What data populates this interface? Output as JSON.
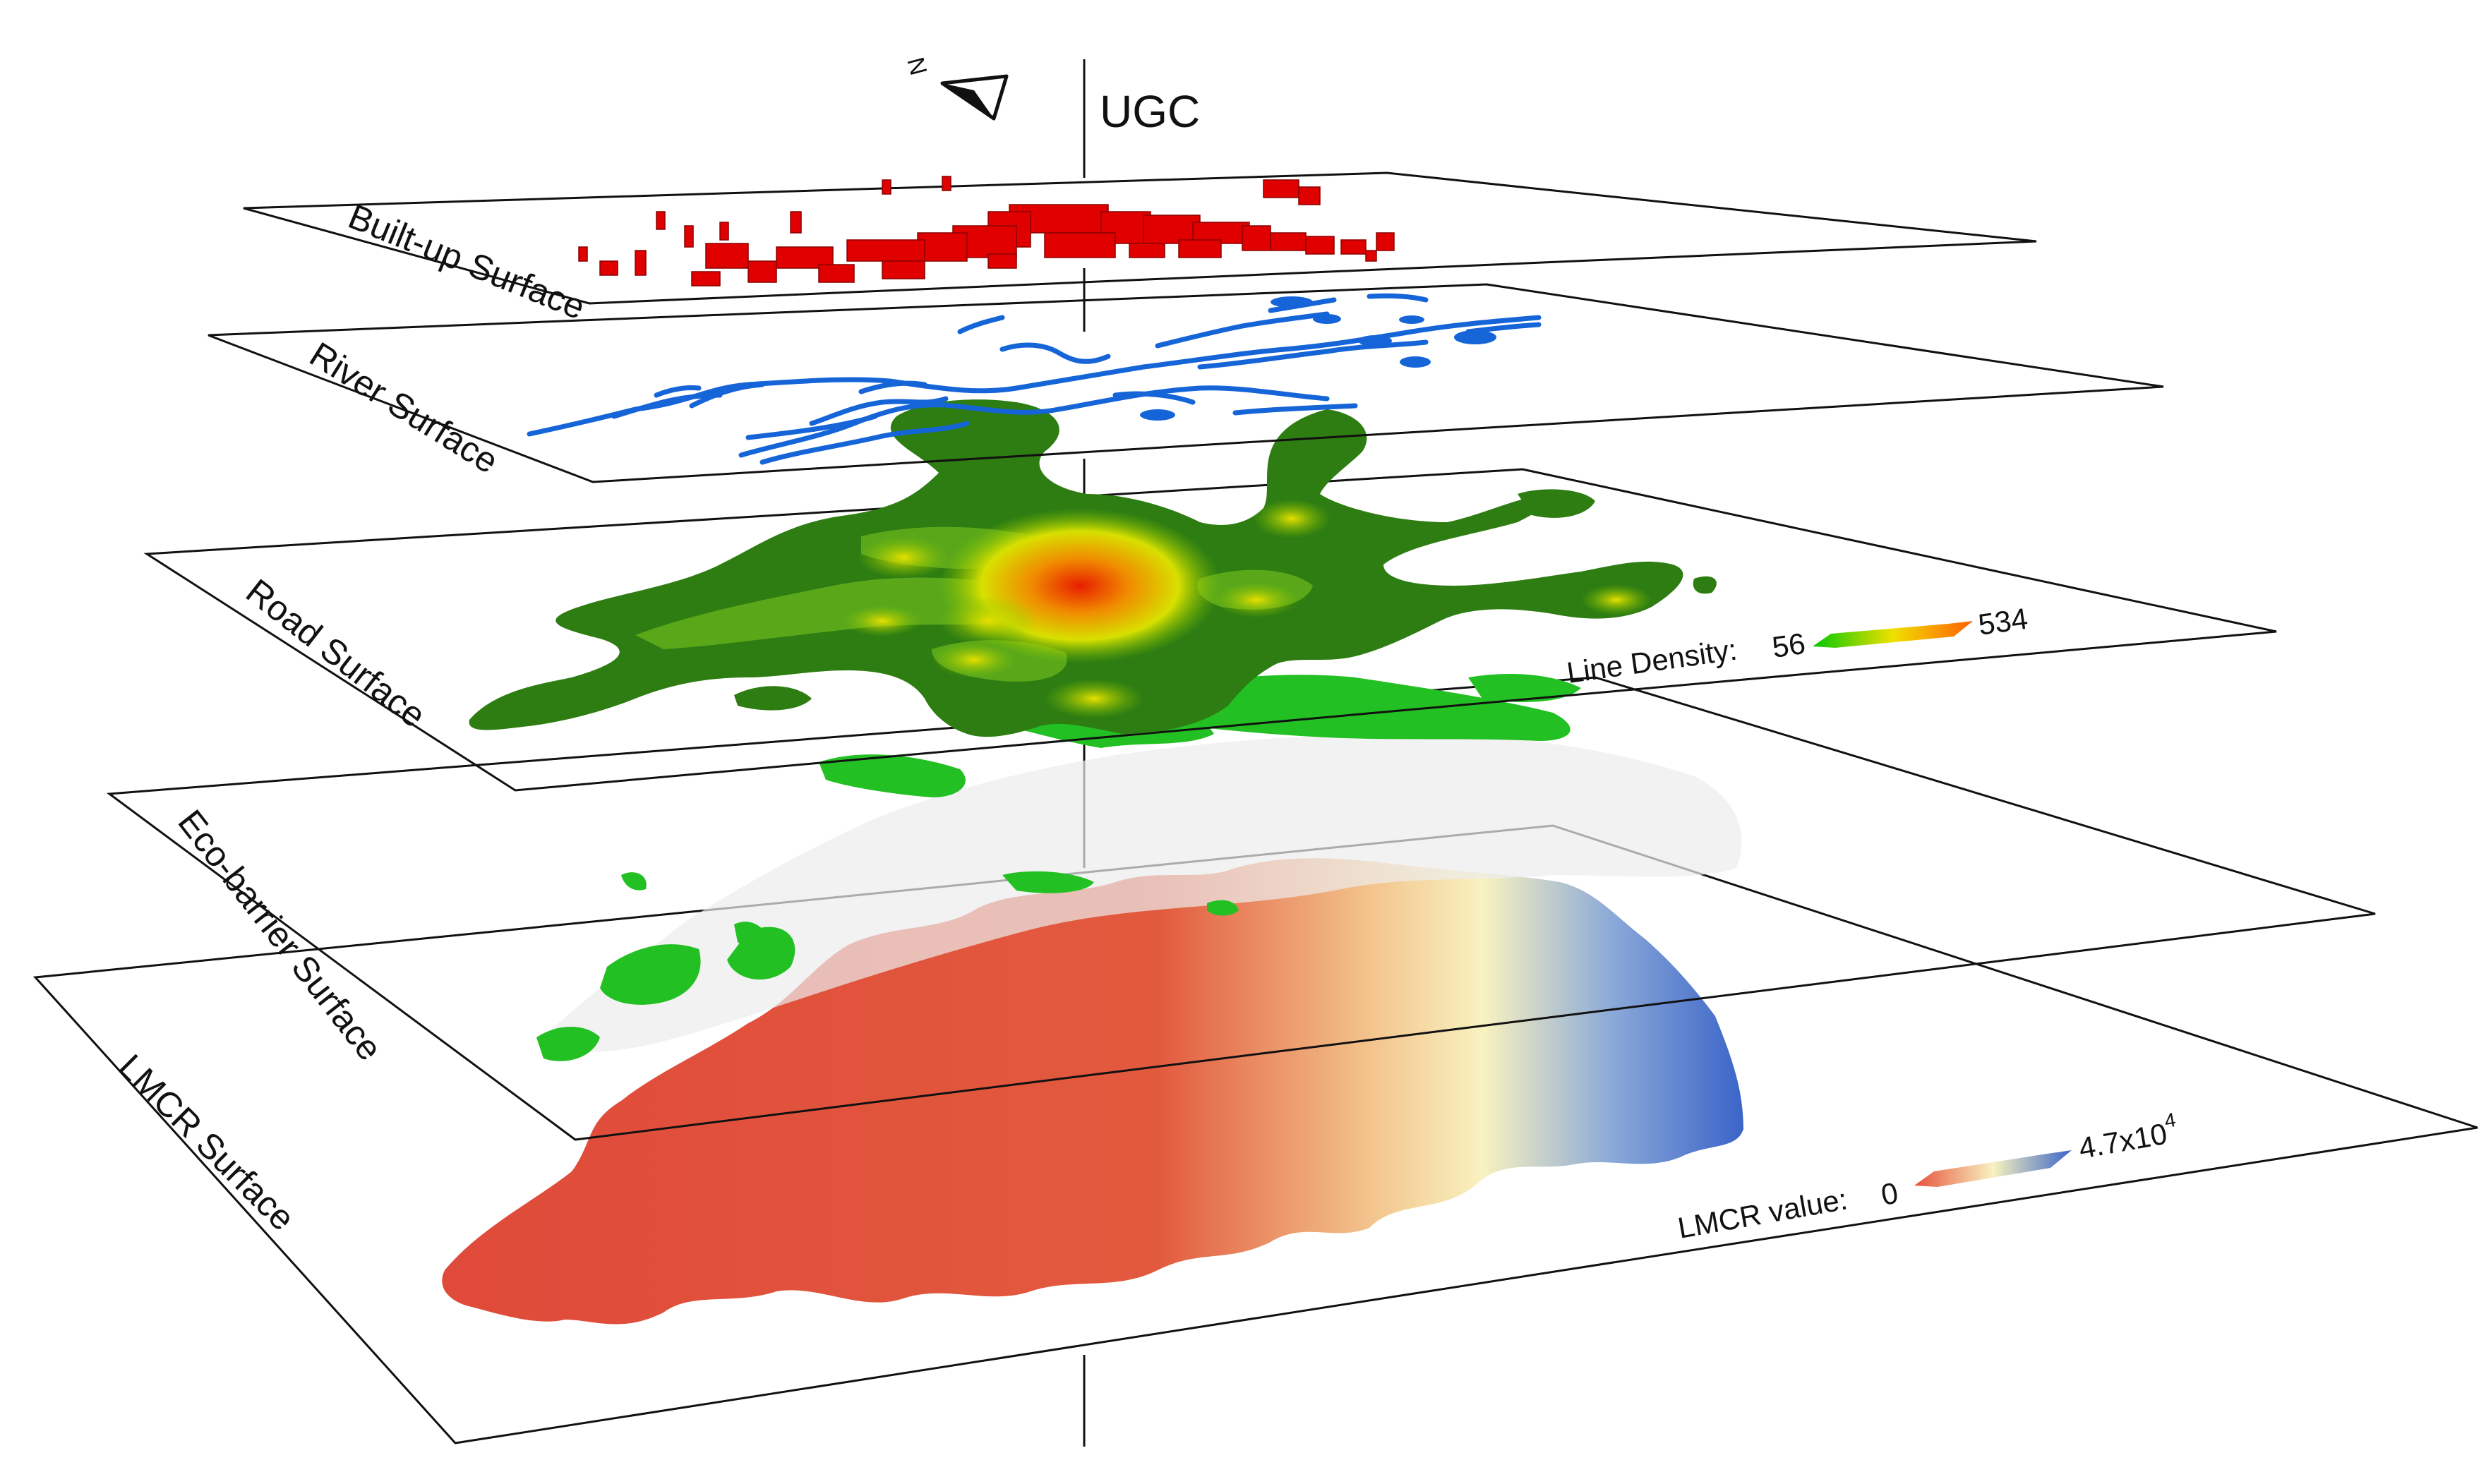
{
  "title": "UGC",
  "north_label": "N",
  "layers": [
    {
      "id": "built-up",
      "label": "Built-up Surface",
      "color": "#e00000"
    },
    {
      "id": "river",
      "label": "River Surface",
      "color": "#1565d8"
    },
    {
      "id": "road",
      "label": "Road Surface",
      "color": "#2e8b1a"
    },
    {
      "id": "eco-barrier",
      "label": "Eco-barrier Surface",
      "color": "#22c022"
    },
    {
      "id": "lmcr",
      "label": "LMCR Surface",
      "color": "#e04a3a"
    }
  ],
  "legends": {
    "line_density": {
      "label": "Line Density:",
      "min": "56",
      "max": "534",
      "colors": [
        "#00c800",
        "#f0e000",
        "#ff6000"
      ]
    },
    "lmcr_value": {
      "label": "LMCR value:",
      "min": "0",
      "max_base": "4.7x10",
      "max_exp": "4",
      "colors": [
        "#e8503a",
        "#f8f2c0",
        "#3a64c8"
      ]
    }
  }
}
